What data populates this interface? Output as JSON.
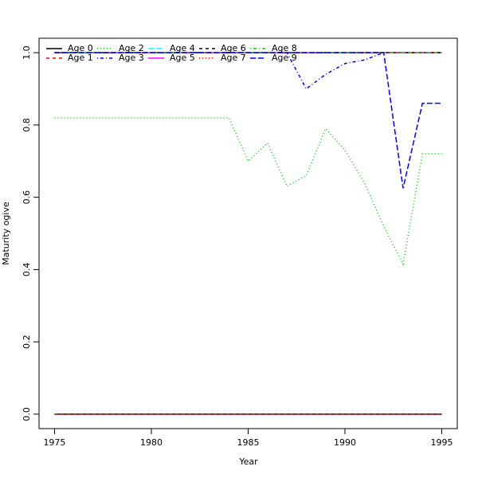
{
  "chart_data": {
    "type": "line",
    "x_label": "Year",
    "y_label": "Maturity ogive",
    "x": [
      1975,
      1976,
      1977,
      1978,
      1979,
      1980,
      1981,
      1982,
      1983,
      1984,
      1985,
      1986,
      1987,
      1988,
      1989,
      1990,
      1991,
      1992,
      1993,
      1994,
      1995
    ],
    "xlim": [
      1974.2,
      1995.8
    ],
    "xticks": [
      1975,
      1980,
      1985,
      1990,
      1995
    ],
    "ylim": [
      -0.04,
      1.04
    ],
    "yticks": [
      {
        "value": 0,
        "label": "0.0"
      },
      0.2,
      0.4,
      0.6,
      0.8,
      {
        "value": 1,
        "label": "1.0"
      }
    ],
    "legend": "top-left",
    "series": [
      {
        "name": "Age 0",
        "color": "#000000",
        "dash": "solid",
        "values": [
          0,
          0,
          0,
          0,
          0,
          0,
          0,
          0,
          0,
          0,
          0,
          0,
          0,
          0,
          0,
          0,
          0,
          0,
          0,
          0,
          0
        ]
      },
      {
        "name": "Age 1",
        "color": "#ff0000",
        "dash": "dashed",
        "values": [
          0,
          0,
          0,
          0,
          0,
          0,
          0,
          0,
          0,
          0,
          0,
          0,
          0,
          0,
          0,
          0,
          0,
          0,
          0,
          0,
          0
        ]
      },
      {
        "name": "Age 2",
        "color": "#00cd00",
        "dash": "dotted",
        "values": [
          0.82,
          0.82,
          0.82,
          0.82,
          0.82,
          0.82,
          0.82,
          0.82,
          0.82,
          0.82,
          0.7,
          0.75,
          0.63,
          0.66,
          0.79,
          0.73,
          0.64,
          0.52,
          0.415,
          0.72,
          0.72
        ]
      },
      {
        "name": "Age 3",
        "color": "#0000ff",
        "dash": "dotdash",
        "values": [
          1,
          1,
          1,
          1,
          1,
          1,
          1,
          1,
          1,
          1,
          1,
          1,
          1,
          0.9,
          0.94,
          0.97,
          0.98,
          1,
          1,
          1,
          1
        ]
      },
      {
        "name": "Age 4",
        "color": "#00ffff",
        "dash": "longdash",
        "values": [
          1,
          1,
          1,
          1,
          1,
          1,
          1,
          1,
          1,
          1,
          1,
          1,
          1,
          1,
          1,
          1,
          1,
          1,
          1,
          1,
          1
        ]
      },
      {
        "name": "Age 5",
        "color": "#ff00ff",
        "dash": "solid",
        "values": [
          1,
          1,
          1,
          1,
          1,
          1,
          1,
          1,
          1,
          1,
          1,
          1,
          1,
          1,
          1,
          1,
          1,
          1,
          1,
          1,
          1
        ]
      },
      {
        "name": "Age 6",
        "color": "#000000",
        "dash": "dashed",
        "values": [
          1,
          1,
          1,
          1,
          1,
          1,
          1,
          1,
          1,
          1,
          1,
          1,
          1,
          1,
          1,
          1,
          1,
          1,
          1,
          1,
          1
        ]
      },
      {
        "name": "Age 7",
        "color": "#ff0000",
        "dash": "dotted",
        "values": [
          1,
          1,
          1,
          1,
          1,
          1,
          1,
          1,
          1,
          1,
          1,
          1,
          1,
          1,
          1,
          1,
          1,
          1,
          1,
          1,
          1
        ]
      },
      {
        "name": "Age 8",
        "color": "#00cd00",
        "dash": "dotdash",
        "values": [
          1,
          1,
          1,
          1,
          1,
          1,
          1,
          1,
          1,
          1,
          1,
          1,
          1,
          1,
          1,
          1,
          1,
          1,
          1,
          1,
          1
        ]
      },
      {
        "name": "Age 9",
        "color": "#0000ff",
        "dash": "longdash",
        "values": [
          1,
          1,
          1,
          1,
          1,
          1,
          1,
          1,
          1,
          1,
          1,
          1,
          1,
          1,
          1,
          1,
          1,
          1,
          0.625,
          0.86,
          0.86
        ]
      }
    ]
  }
}
